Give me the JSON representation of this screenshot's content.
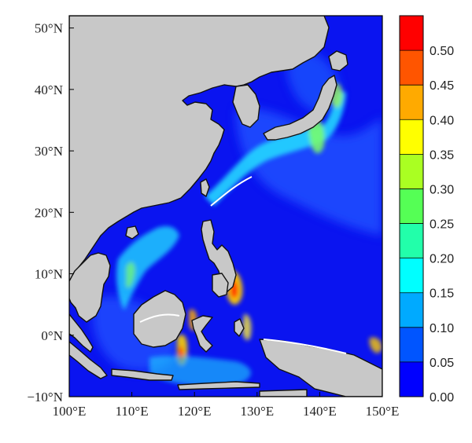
{
  "map": {
    "x_ticks": [
      "100°E",
      "110°E",
      "120°E",
      "130°E",
      "140°E",
      "150°E"
    ],
    "y_ticks": [
      "50°N",
      "40°N",
      "30°N",
      "20°N",
      "10°N",
      "0°N",
      "−10°N"
    ],
    "lon_range": [
      100,
      150
    ],
    "lat_range": [
      -10,
      52
    ],
    "land_color": "#c8c8c8",
    "ocean_low_color": "#0a14f0"
  },
  "colorbar": {
    "labels": [
      "0.50",
      "0.45",
      "0.40",
      "0.35",
      "0.30",
      "0.25",
      "0.20",
      "0.15",
      "0.10",
      "0.05",
      "0.00"
    ],
    "colors": [
      "#ff0000",
      "#ff5500",
      "#ffaa00",
      "#ffff00",
      "#aaff22",
      "#55ff55",
      "#22ffaa",
      "#00ffff",
      "#00aaff",
      "#0055ff",
      "#0000ff"
    ],
    "min": 0.0,
    "max": 0.55
  }
}
